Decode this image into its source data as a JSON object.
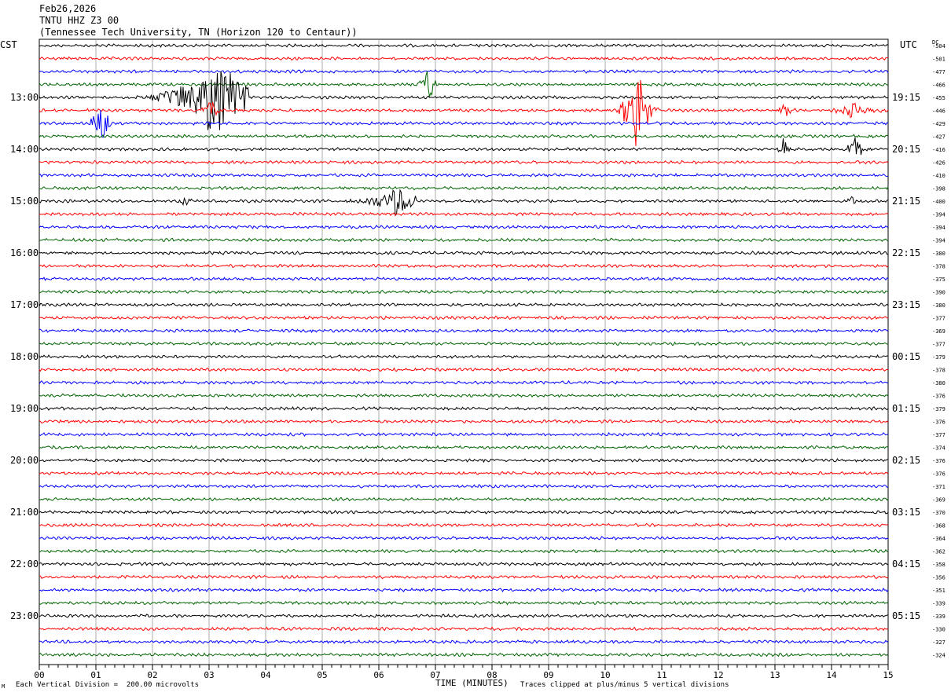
{
  "header": {
    "date": "Feb26,2026",
    "station": "TNTU HHZ Z3 00",
    "location": "(Tennessee Tech University, TN (Horizon 120 to Centaur))"
  },
  "left_tz": "CST",
  "right_tz": "UTC",
  "dc_label": "DC",
  "footer": {
    "scale": "Each Vertical Division =  200.00 microvolts",
    "xlabel": "TIME (MINUTES)",
    "clip": "Traces clipped at plus/minus 5 vertical divisions",
    "mark": "M"
  },
  "colors": {
    "black": "#000000",
    "red": "#ff0000",
    "blue": "#0000ff",
    "green": "#006400",
    "grid": "#999999"
  },
  "chart_data": {
    "type": "line",
    "title": "TNTU HHZ Z3 00",
    "xlabel": "TIME (MINUTES)",
    "x_ticks": [
      "00",
      "01",
      "02",
      "03",
      "04",
      "05",
      "06",
      "07",
      "08",
      "09",
      "10",
      "11",
      "12",
      "13",
      "14",
      "15"
    ],
    "xlim": [
      0,
      15
    ],
    "trace_count": 48,
    "trace_color_cycle": [
      "black",
      "red",
      "blue",
      "green"
    ],
    "left_time_labels": [
      {
        "trace": 4,
        "label": "13:00"
      },
      {
        "trace": 8,
        "label": "14:00"
      },
      {
        "trace": 12,
        "label": "15:00"
      },
      {
        "trace": 16,
        "label": "16:00"
      },
      {
        "trace": 20,
        "label": "17:00"
      },
      {
        "trace": 24,
        "label": "18:00"
      },
      {
        "trace": 28,
        "label": "19:00"
      },
      {
        "trace": 32,
        "label": "20:00"
      },
      {
        "trace": 36,
        "label": "21:00"
      },
      {
        "trace": 40,
        "label": "22:00"
      },
      {
        "trace": 44,
        "label": "23:00"
      }
    ],
    "right_time_labels": [
      {
        "trace": 4,
        "label": "19:15"
      },
      {
        "trace": 8,
        "label": "20:15"
      },
      {
        "trace": 12,
        "label": "21:15"
      },
      {
        "trace": 16,
        "label": "22:15"
      },
      {
        "trace": 20,
        "label": "23:15"
      },
      {
        "trace": 24,
        "label": "00:15"
      },
      {
        "trace": 28,
        "label": "01:15"
      },
      {
        "trace": 32,
        "label": "02:15"
      },
      {
        "trace": 36,
        "label": "03:15"
      },
      {
        "trace": 40,
        "label": "04:15"
      },
      {
        "trace": 44,
        "label": "05:15"
      }
    ],
    "dc_offsets": [
      "-504",
      "-501",
      "-477",
      "-466",
      "-455",
      "-446",
      "-429",
      "-427",
      "-416",
      "-426",
      "-410",
      "-398",
      "-400",
      "-394",
      "-394",
      "-394",
      "-380",
      "-378",
      "-375",
      "-390",
      "-380",
      "-377",
      "-369",
      "-377",
      "-379",
      "-378",
      "-380",
      "-376",
      "-379",
      "-376",
      "-377",
      "-374",
      "-376",
      "-376",
      "-371",
      "-369",
      "-370",
      "-368",
      "-364",
      "-362",
      "-358",
      "-356",
      "-351",
      "-339",
      "-339",
      "-330",
      "-327",
      "-324"
    ],
    "events": [
      {
        "trace": 4,
        "start": 1.6,
        "end": 3.7,
        "peak": 2.95,
        "amp": 5
      },
      {
        "trace": 5,
        "start": 2.8,
        "end": 3.2,
        "peak": 3.0,
        "amp": 1.3
      },
      {
        "trace": 6,
        "start": 0.9,
        "end": 1.35,
        "peak": 1.05,
        "amp": 3
      },
      {
        "trace": 3,
        "start": 6.6,
        "end": 7.0,
        "peak": 6.85,
        "amp": 2.2
      },
      {
        "trace": 5,
        "start": 10.2,
        "end": 10.95,
        "peak": 10.5,
        "amp": 5
      },
      {
        "trace": 5,
        "start": 12.9,
        "end": 13.4,
        "peak": 13.15,
        "amp": 0.8
      },
      {
        "trace": 5,
        "start": 13.9,
        "end": 15.0,
        "peak": 14.3,
        "amp": 1.0
      },
      {
        "trace": 8,
        "start": 13.0,
        "end": 13.3,
        "peak": 13.15,
        "amp": 1.7
      },
      {
        "trace": 8,
        "start": 14.2,
        "end": 14.6,
        "peak": 14.4,
        "amp": 1.7
      },
      {
        "trace": 12,
        "start": 5.4,
        "end": 6.7,
        "peak": 6.2,
        "amp": 2.0
      },
      {
        "trace": 12,
        "start": 2.4,
        "end": 2.7,
        "peak": 2.55,
        "amp": 0.6
      },
      {
        "trace": 12,
        "start": 14.2,
        "end": 14.5,
        "peak": 14.35,
        "amp": 0.8
      }
    ]
  }
}
